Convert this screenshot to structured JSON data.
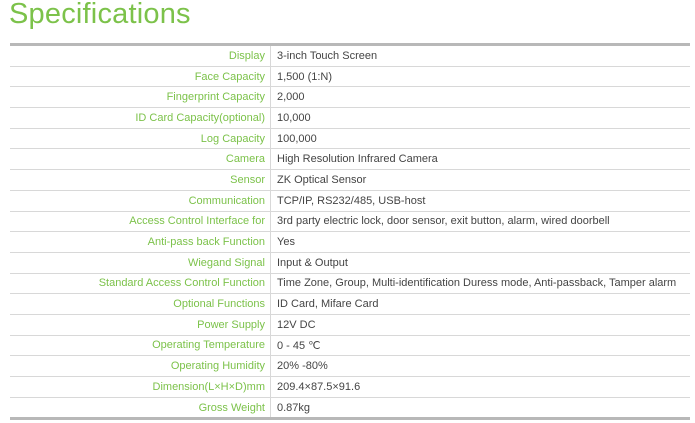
{
  "title": "Specifications",
  "accent_color": "#7cc24a",
  "specs": [
    {
      "label": "Display",
      "value": "3-inch Touch Screen"
    },
    {
      "label": "Face Capacity",
      "value": "1,500 (1:N)"
    },
    {
      "label": "Fingerprint Capacity",
      "value": "2,000"
    },
    {
      "label": "ID Card Capacity(optional)",
      "value": "10,000"
    },
    {
      "label": "Log Capacity",
      "value": "100,000"
    },
    {
      "label": "Camera",
      "value": "High Resolution Infrared Camera"
    },
    {
      "label": "Sensor",
      "value": "ZK Optical Sensor"
    },
    {
      "label": "Communication",
      "value": "TCP/IP, RS232/485, USB-host"
    },
    {
      "label": "Access Control Interface for",
      "value": "3rd party electric lock, door sensor, exit button, alarm, wired doorbell"
    },
    {
      "label": "Anti-pass back Function",
      "value": "Yes"
    },
    {
      "label": "Wiegand Signal",
      "value": "Input & Output"
    },
    {
      "label": "Standard Access Control Function",
      "value": "Time Zone, Group, Multi-identification Duress mode, Anti-passback, Tamper alarm"
    },
    {
      "label": "Optional Functions",
      "value": "ID Card, Mifare Card"
    },
    {
      "label": "Power Supply",
      "value": "12V DC"
    },
    {
      "label": "Operating Temperature",
      "value": "0 - 45 ℃"
    },
    {
      "label": "Operating Humidity",
      "value": "20% -80%"
    },
    {
      "label": "Dimension(L×H×D)mm",
      "value": "209.4×87.5×91.6"
    },
    {
      "label": "Gross Weight",
      "value": "0.87kg"
    }
  ]
}
